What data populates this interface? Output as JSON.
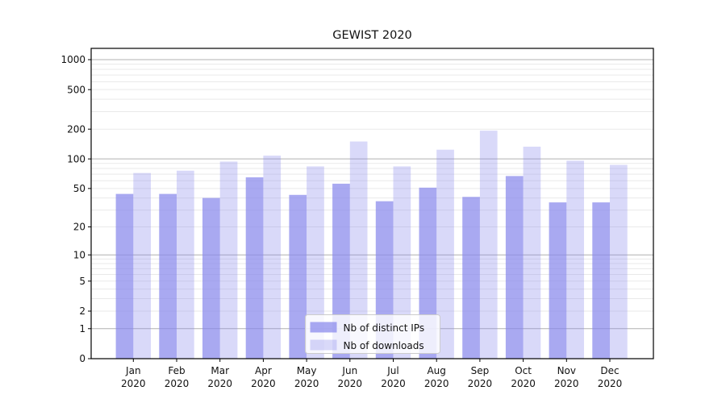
{
  "title": "GEWIST 2020",
  "chart_data": {
    "type": "bar",
    "title": "GEWIST 2020",
    "scale": "symlog",
    "categories": [
      "Jan",
      "Feb",
      "Mar",
      "Apr",
      "May",
      "Jun",
      "Jul",
      "Aug",
      "Sep",
      "Oct",
      "Nov",
      "Dec"
    ],
    "year_label": "2020",
    "series": [
      {
        "name": "Nb of distinct IPs",
        "color": "#8888ec",
        "opacity": 0.72,
        "values": [
          44,
          44,
          40,
          65,
          43,
          56,
          37,
          51,
          41,
          67,
          36,
          36
        ]
      },
      {
        "name": "Nb of downloads",
        "color": "#8888ec",
        "opacity": 0.32,
        "values": [
          72,
          76,
          94,
          108,
          84,
          150,
          84,
          124,
          193,
          133,
          96,
          87
        ]
      }
    ],
    "xlabel": "",
    "ylabel": "",
    "y_ticks": [
      0,
      1,
      2,
      5,
      10,
      20,
      50,
      100,
      200,
      500,
      1000
    ],
    "ylim": [
      0,
      1300
    ],
    "grid": {
      "on": true,
      "major_color": "#b0b0b0",
      "minor_color": "#e9e9e9"
    },
    "legend": {
      "position": "bottom-center",
      "entries": [
        "Nb of distinct IPs",
        "Nb of downloads"
      ]
    },
    "text_color": "#111111",
    "axis_color": "#000000"
  }
}
